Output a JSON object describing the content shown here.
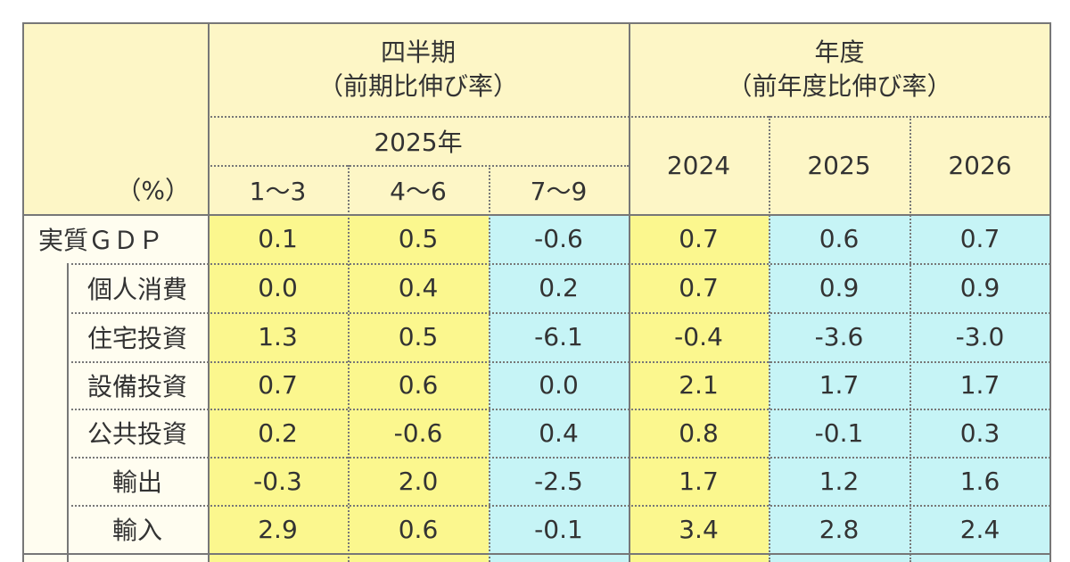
{
  "header": {
    "unit": "（%）",
    "quarterly": {
      "title": "四半期",
      "subtitle": "（前期比伸び率）",
      "year": "2025年",
      "periods": [
        "1～3",
        "4～6",
        "7～9"
      ]
    },
    "annual": {
      "title": "年度",
      "subtitle": "（前年度比伸び率）",
      "years": [
        "2024",
        "2025",
        "2026"
      ]
    }
  },
  "table": {
    "rows": [
      {
        "label": "実質ＧＤＰ",
        "values": [
          "0.1",
          "0.5",
          "-0.6",
          "0.7",
          "0.6",
          "0.7"
        ]
      },
      {
        "label": "個人消費",
        "values": [
          "0.0",
          "0.4",
          "0.2",
          "0.7",
          "0.9",
          "0.9"
        ]
      },
      {
        "label": "住宅投資",
        "values": [
          "1.3",
          "0.5",
          "-6.1",
          "-0.4",
          "-3.6",
          "-3.0"
        ]
      },
      {
        "label": "設備投資",
        "values": [
          "0.7",
          "0.6",
          "0.0",
          "2.1",
          "1.7",
          "1.7"
        ]
      },
      {
        "label": "公共投資",
        "values": [
          "0.2",
          "-0.6",
          "0.4",
          "0.8",
          "-0.1",
          "0.3"
        ]
      },
      {
        "label": "輸出",
        "values": [
          "-0.3",
          "2.0",
          "-2.5",
          "1.7",
          "1.2",
          "1.6"
        ]
      },
      {
        "label": "輸入",
        "values": [
          "2.9",
          "0.6",
          "-0.1",
          "3.4",
          "2.8",
          "2.4"
        ]
      }
    ]
  }
}
